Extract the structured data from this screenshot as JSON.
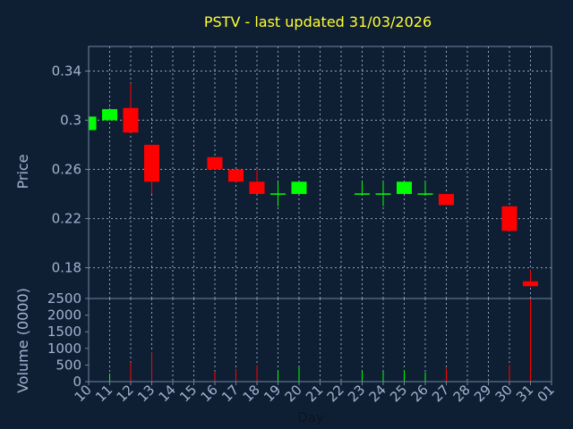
{
  "chart_data": {
    "type": "candlestick",
    "title": "PSTV - last updated 31/03/2026",
    "xlabel": "Day",
    "colors": {
      "background": "#0f1f33",
      "plot_background": "#0f1f33",
      "frame": "#6d84a3",
      "grid": "#8fa3bf",
      "up": "#00ff00",
      "down": "#ff0000",
      "title": "#ffff33",
      "tick_text": "#9fb4d0"
    },
    "x_ticks": [
      "10",
      "11",
      "12",
      "13",
      "14",
      "15",
      "16",
      "17",
      "18",
      "19",
      "20",
      "21",
      "22",
      "23",
      "24",
      "25",
      "26",
      "27",
      "28",
      "29",
      "30",
      "31",
      "01"
    ],
    "price_panel": {
      "ylabel": "Price",
      "ylim": [
        0.155,
        0.36
      ],
      "y_ticks": [
        "0.18",
        "0.22",
        "0.26",
        "0.3",
        "0.34"
      ],
      "candles": [
        {
          "day": "10",
          "open": 0.292,
          "high": 0.303,
          "low": 0.292,
          "close": 0.303
        },
        {
          "day": "11",
          "open": 0.3,
          "high": 0.31,
          "low": 0.3,
          "close": 0.309
        },
        {
          "day": "12",
          "open": 0.31,
          "high": 0.33,
          "low": 0.29,
          "close": 0.29
        },
        {
          "day": "13",
          "open": 0.28,
          "high": 0.28,
          "low": 0.24,
          "close": 0.25
        },
        {
          "day": "16",
          "open": 0.27,
          "high": 0.27,
          "low": 0.26,
          "close": 0.26
        },
        {
          "day": "17",
          "open": 0.26,
          "high": 0.26,
          "low": 0.25,
          "close": 0.25
        },
        {
          "day": "18",
          "open": 0.25,
          "high": 0.26,
          "low": 0.24,
          "close": 0.24
        },
        {
          "day": "19",
          "open": 0.24,
          "high": 0.25,
          "low": 0.23,
          "close": 0.24
        },
        {
          "day": "20",
          "open": 0.24,
          "high": 0.25,
          "low": 0.24,
          "close": 0.25
        },
        {
          "day": "23",
          "open": 0.24,
          "high": 0.25,
          "low": 0.24,
          "close": 0.24
        },
        {
          "day": "24",
          "open": 0.24,
          "high": 0.25,
          "low": 0.23,
          "close": 0.24
        },
        {
          "day": "25",
          "open": 0.24,
          "high": 0.25,
          "low": 0.24,
          "close": 0.25
        },
        {
          "day": "26",
          "open": 0.24,
          "high": 0.25,
          "low": 0.24,
          "close": 0.24
        },
        {
          "day": "27",
          "open": 0.24,
          "high": 0.24,
          "low": 0.231,
          "close": 0.231
        },
        {
          "day": "30",
          "open": 0.23,
          "high": 0.23,
          "low": 0.21,
          "close": 0.21
        },
        {
          "day": "31",
          "open": 0.169,
          "high": 0.178,
          "low": 0.165,
          "close": 0.165
        }
      ]
    },
    "volume_panel": {
      "ylabel": "Volume (0000)",
      "ylim": [
        0,
        2500
      ],
      "y_ticks": [
        "0",
        "500",
        "1000",
        "1500",
        "2000",
        "2500"
      ],
      "bars": [
        {
          "day": "11",
          "value": 250,
          "dir": "up"
        },
        {
          "day": "12",
          "value": 580,
          "dir": "down"
        },
        {
          "day": "13",
          "value": 880,
          "dir": "down"
        },
        {
          "day": "16",
          "value": 310,
          "dir": "down"
        },
        {
          "day": "17",
          "value": 380,
          "dir": "down"
        },
        {
          "day": "18",
          "value": 480,
          "dir": "down"
        },
        {
          "day": "19",
          "value": 350,
          "dir": "up"
        },
        {
          "day": "20",
          "value": 450,
          "dir": "up"
        },
        {
          "day": "23",
          "value": 330,
          "dir": "up"
        },
        {
          "day": "24",
          "value": 300,
          "dir": "up"
        },
        {
          "day": "25",
          "value": 350,
          "dir": "up"
        },
        {
          "day": "26",
          "value": 280,
          "dir": "up"
        },
        {
          "day": "27",
          "value": 400,
          "dir": "down"
        },
        {
          "day": "30",
          "value": 500,
          "dir": "down"
        },
        {
          "day": "31",
          "value": 2500,
          "dir": "down"
        }
      ]
    }
  }
}
